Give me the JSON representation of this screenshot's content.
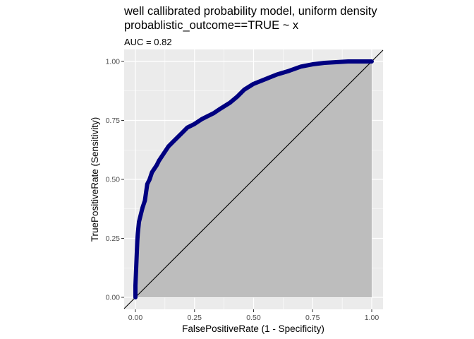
{
  "chart_data": {
    "type": "line",
    "title": "well callibrated probability model, uniform density",
    "title_line2": "probablistic_outcome==TRUE ~ x",
    "subtitle": "AUC = 0.82",
    "xlabel": "FalsePositiveRate (1 - Specificity)",
    "ylabel": "TruePositiveRate (Sensitivity)",
    "xlim": [
      0,
      1
    ],
    "ylim": [
      0,
      1
    ],
    "x_ticks": [
      "0.00",
      "0.25",
      "0.50",
      "0.75",
      "1.00"
    ],
    "y_ticks": [
      "0.00",
      "0.25",
      "0.50",
      "0.75",
      "1.00"
    ],
    "grid": true,
    "legend": "none",
    "colors": {
      "panel_background": "#ebebeb",
      "grid": "#ffffff",
      "area_fill": "#bdbdbd",
      "roc_line": "#000080",
      "diagonal": "#000000"
    },
    "series": [
      {
        "x": [
          0.0,
          0.0,
          0.003,
          0.005,
          0.008,
          0.01,
          0.015,
          0.02,
          0.03,
          0.04,
          0.05,
          0.06,
          0.07,
          0.08,
          0.09,
          0.1,
          0.12,
          0.14,
          0.16,
          0.18,
          0.2,
          0.22,
          0.25,
          0.28,
          0.3,
          0.33,
          0.36,
          0.4,
          0.43,
          0.46,
          0.5,
          0.55,
          0.6,
          0.65,
          0.7,
          0.75,
          0.8,
          0.85,
          0.9,
          0.95,
          1.0
        ],
        "y": [
          0.0,
          0.05,
          0.12,
          0.17,
          0.24,
          0.27,
          0.32,
          0.34,
          0.38,
          0.41,
          0.48,
          0.5,
          0.53,
          0.545,
          0.56,
          0.58,
          0.61,
          0.64,
          0.66,
          0.68,
          0.7,
          0.72,
          0.735,
          0.755,
          0.765,
          0.78,
          0.8,
          0.825,
          0.85,
          0.88,
          0.905,
          0.925,
          0.945,
          0.96,
          0.978,
          0.988,
          0.994,
          0.997,
          1.0,
          1.0,
          1.0
        ]
      }
    ],
    "reference_line": {
      "x": [
        0,
        1
      ],
      "y": [
        0,
        1
      ]
    }
  }
}
